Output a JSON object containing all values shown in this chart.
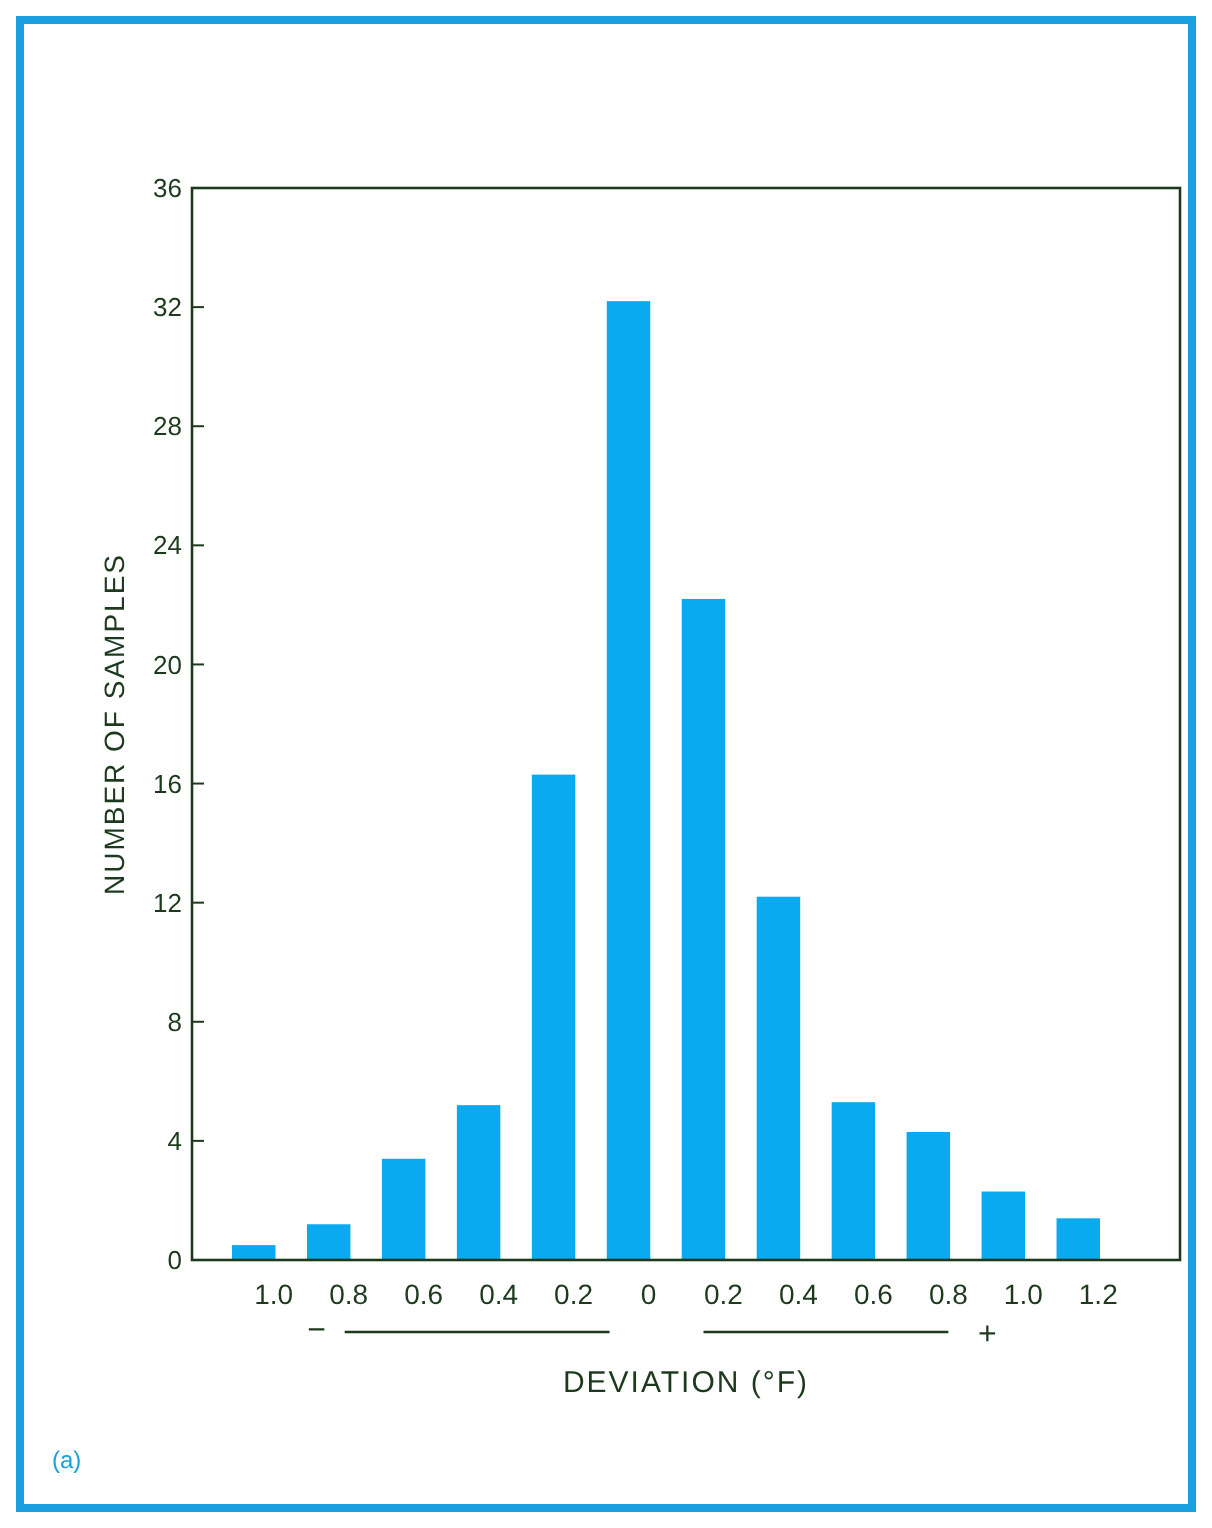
{
  "chart_data": {
    "type": "bar",
    "xlabel": "DEVIATION (°F)",
    "ylabel": "NUMBER OF SAMPLES",
    "categories": [
      "1.0",
      "0.8",
      "0.6",
      "0.4",
      "0.2",
      "0",
      "0.2",
      "0.4",
      "0.6",
      "0.8",
      "1.0",
      "1.2"
    ],
    "values": [
      0.5,
      1.2,
      3.4,
      5.2,
      16.3,
      32.2,
      22.2,
      12.2,
      5.3,
      4.3,
      2.3,
      1.4
    ],
    "color": "#0aaaf0",
    "ylim": [
      0,
      36
    ],
    "yticks": [
      0,
      4,
      8,
      12,
      16,
      20,
      24,
      28,
      32,
      36
    ],
    "grid": false,
    "annotations": [
      "−",
      "+",
      "(a)"
    ]
  }
}
